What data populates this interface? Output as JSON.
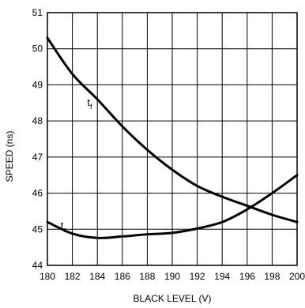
{
  "chart_data": {
    "type": "line",
    "title": "",
    "xlabel": "BLACK LEVEL (V)",
    "ylabel": "SPEED (ns)",
    "xlim": [
      180,
      200
    ],
    "ylim": [
      44,
      51
    ],
    "xticks": [
      180,
      182,
      184,
      186,
      188,
      190,
      192,
      194,
      196,
      198,
      200
    ],
    "yticks": [
      44,
      45,
      46,
      47,
      48,
      49,
      50,
      51
    ],
    "grid": true,
    "series": [
      {
        "name": "tf",
        "label_main": "t",
        "label_sub": "f",
        "x": [
          180,
          182,
          184,
          186,
          188,
          190,
          192,
          194,
          196,
          198,
          200
        ],
        "y": [
          50.3,
          49.3,
          48.6,
          47.85,
          47.2,
          46.65,
          46.2,
          45.9,
          45.65,
          45.4,
          45.2
        ]
      },
      {
        "name": "tr",
        "label_main": "t",
        "label_sub": "r",
        "x": [
          180,
          182,
          184,
          186,
          188,
          190,
          192,
          194,
          196,
          198,
          200
        ],
        "y": [
          45.2,
          44.88,
          44.76,
          44.8,
          44.86,
          44.9,
          45.02,
          45.2,
          45.55,
          46.0,
          46.5
        ]
      }
    ]
  }
}
